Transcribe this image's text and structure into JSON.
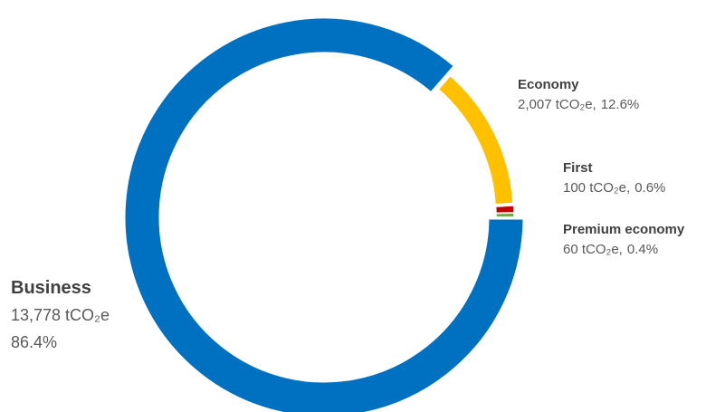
{
  "chart_data": {
    "type": "donut",
    "categories": [
      "Business",
      "Economy",
      "First",
      "Premium economy"
    ],
    "values": [
      13778,
      2007,
      100,
      60
    ],
    "value_labels": [
      "13,778 tCO₂e",
      "2,007 tCO₂e,",
      "100 tCO₂e,",
      "60 tCO₂e,"
    ],
    "percentages": [
      86.4,
      12.6,
      0.6,
      0.4
    ],
    "percentage_labels": [
      "86.4%",
      "12.6%",
      "0.6%",
      "0.4%"
    ],
    "colors": [
      "#0070c0",
      "#ffc000",
      "#c00000",
      "#70ad47"
    ]
  }
}
